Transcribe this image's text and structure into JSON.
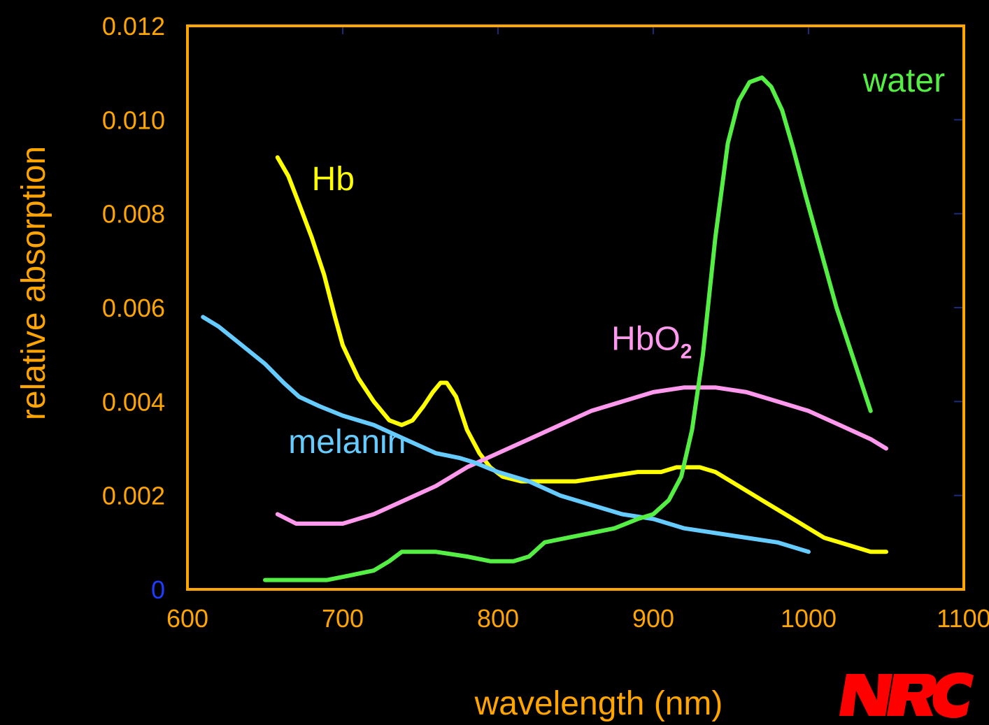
{
  "chart_data": {
    "type": "line",
    "xlabel": "wavelength (nm)",
    "ylabel": "relative absorption",
    "xlim": [
      600,
      1100
    ],
    "ylim": [
      0,
      0.012
    ],
    "x_ticks": [
      "600",
      "700",
      "800",
      "900",
      "1000",
      "1100"
    ],
    "y_ticks": [
      "0",
      "0.002",
      "0.004",
      "0.006",
      "0.008",
      "0.010",
      "0.012"
    ],
    "grid": false,
    "colors": {
      "background": "#000000",
      "axis": "#ffa500",
      "zero_tick": "#1e3cff",
      "minor_tick": "#1b2a7a"
    },
    "series": [
      {
        "name": "Hb",
        "color": "#ffff00",
        "points": [
          [
            658,
            0.0092
          ],
          [
            665,
            0.0088
          ],
          [
            672,
            0.0082
          ],
          [
            680,
            0.0075
          ],
          [
            688,
            0.0067
          ],
          [
            695,
            0.0058
          ],
          [
            700,
            0.0052
          ],
          [
            710,
            0.0045
          ],
          [
            720,
            0.004
          ],
          [
            730,
            0.0036
          ],
          [
            738,
            0.0035
          ],
          [
            745,
            0.0036
          ],
          [
            752,
            0.0039
          ],
          [
            758,
            0.0042
          ],
          [
            763,
            0.0044
          ],
          [
            767,
            0.0044
          ],
          [
            773,
            0.0041
          ],
          [
            780,
            0.0034
          ],
          [
            788,
            0.0029
          ],
          [
            795,
            0.0026
          ],
          [
            803,
            0.0024
          ],
          [
            815,
            0.0023
          ],
          [
            830,
            0.0023
          ],
          [
            850,
            0.0023
          ],
          [
            870,
            0.0024
          ],
          [
            890,
            0.0025
          ],
          [
            905,
            0.0025
          ],
          [
            915,
            0.0026
          ],
          [
            930,
            0.0026
          ],
          [
            940,
            0.0025
          ],
          [
            955,
            0.0022
          ],
          [
            970,
            0.0019
          ],
          [
            985,
            0.0016
          ],
          [
            1000,
            0.0013
          ],
          [
            1010,
            0.0011
          ],
          [
            1020,
            0.001
          ],
          [
            1030,
            0.0009
          ],
          [
            1040,
            0.0008
          ],
          [
            1050,
            0.0008
          ]
        ]
      },
      {
        "name": "HbO2",
        "color": "#ff99ee",
        "points": [
          [
            658,
            0.0016
          ],
          [
            670,
            0.0014
          ],
          [
            685,
            0.0014
          ],
          [
            700,
            0.0014
          ],
          [
            720,
            0.0016
          ],
          [
            740,
            0.0019
          ],
          [
            760,
            0.0022
          ],
          [
            780,
            0.0026
          ],
          [
            800,
            0.0029
          ],
          [
            820,
            0.0032
          ],
          [
            840,
            0.0035
          ],
          [
            860,
            0.0038
          ],
          [
            880,
            0.004
          ],
          [
            900,
            0.0042
          ],
          [
            920,
            0.0043
          ],
          [
            940,
            0.0043
          ],
          [
            960,
            0.0042
          ],
          [
            980,
            0.004
          ],
          [
            1000,
            0.0038
          ],
          [
            1020,
            0.0035
          ],
          [
            1040,
            0.0032
          ],
          [
            1050,
            0.003
          ]
        ]
      },
      {
        "name": "melanin",
        "color": "#66ccff",
        "points": [
          [
            610,
            0.0058
          ],
          [
            620,
            0.0056
          ],
          [
            635,
            0.0052
          ],
          [
            650,
            0.0048
          ],
          [
            662,
            0.0044
          ],
          [
            672,
            0.0041
          ],
          [
            685,
            0.0039
          ],
          [
            700,
            0.0037
          ],
          [
            720,
            0.0035
          ],
          [
            740,
            0.0032
          ],
          [
            760,
            0.0029
          ],
          [
            775,
            0.0028
          ],
          [
            785,
            0.0027
          ],
          [
            800,
            0.0025
          ],
          [
            820,
            0.0023
          ],
          [
            840,
            0.002
          ],
          [
            860,
            0.0018
          ],
          [
            880,
            0.0016
          ],
          [
            900,
            0.0015
          ],
          [
            920,
            0.0013
          ],
          [
            940,
            0.0012
          ],
          [
            960,
            0.0011
          ],
          [
            980,
            0.001
          ],
          [
            1000,
            0.0008
          ]
        ]
      },
      {
        "name": "water",
        "color": "#55ee44",
        "points": [
          [
            650,
            0.0002
          ],
          [
            670,
            0.0002
          ],
          [
            690,
            0.0002
          ],
          [
            705,
            0.0003
          ],
          [
            720,
            0.0004
          ],
          [
            730,
            0.0006
          ],
          [
            738,
            0.0008
          ],
          [
            745,
            0.0008
          ],
          [
            760,
            0.0008
          ],
          [
            780,
            0.0007
          ],
          [
            795,
            0.0006
          ],
          [
            810,
            0.0006
          ],
          [
            820,
            0.0007
          ],
          [
            830,
            0.001
          ],
          [
            845,
            0.0011
          ],
          [
            860,
            0.0012
          ],
          [
            875,
            0.0013
          ],
          [
            890,
            0.0015
          ],
          [
            900,
            0.0016
          ],
          [
            910,
            0.0019
          ],
          [
            918,
            0.0024
          ],
          [
            925,
            0.0034
          ],
          [
            932,
            0.005
          ],
          [
            940,
            0.0075
          ],
          [
            948,
            0.0095
          ],
          [
            955,
            0.0104
          ],
          [
            962,
            0.0108
          ],
          [
            970,
            0.0109
          ],
          [
            976,
            0.0107
          ],
          [
            983,
            0.0102
          ],
          [
            990,
            0.0094
          ],
          [
            998,
            0.0084
          ],
          [
            1008,
            0.0072
          ],
          [
            1018,
            0.006
          ],
          [
            1030,
            0.0048
          ],
          [
            1040,
            0.0038
          ]
        ]
      }
    ],
    "annotations": [
      {
        "text": "Hb",
        "color": "#ffff00",
        "x": 680,
        "y": 0.0085
      },
      {
        "text": "HbO",
        "sub": "2",
        "color": "#ff99ee",
        "x": 873,
        "y": 0.0051
      },
      {
        "text": "melanin",
        "color": "#66ccff",
        "x": 665,
        "y": 0.0029
      },
      {
        "text": "water",
        "color": "#55ee44",
        "x": 1035,
        "y": 0.0106
      }
    ],
    "logo_text": "NRC",
    "logo_color": "#ff0000"
  }
}
